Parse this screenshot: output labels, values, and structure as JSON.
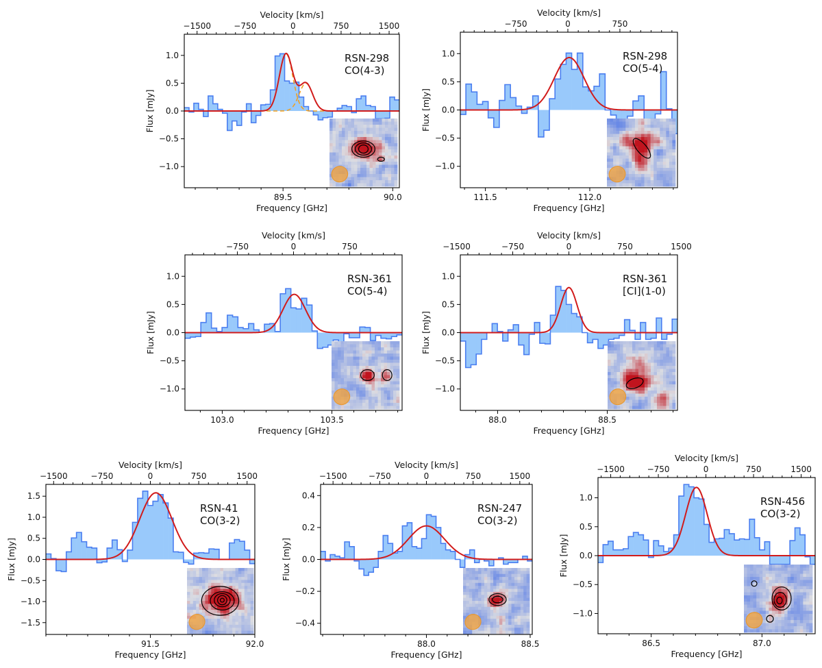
{
  "figure": {
    "description": "Multi-panel CO/[CI] line spectra with Gaussian fits and moment-0 map insets"
  },
  "chart_data": [
    {
      "type": "bar",
      "style": "step-histogram",
      "source": "RSN-298",
      "line": "CO(4-3)",
      "annotation": [
        "RSN-298",
        "CO(4-3)"
      ],
      "xlabel": "Frequency [GHz]",
      "ylabel": "Flux [mJy]",
      "top_xlabel": "Velocity [km/s]",
      "xlim": [
        89.05,
        90.03
      ],
      "ylim": [
        -1.38,
        1.38
      ],
      "xticks": [
        89.5,
        90.0
      ],
      "xtick_labels": [
        "89.5",
        "90.0"
      ],
      "yticks": [
        -1.0,
        -0.5,
        0.0,
        0.5,
        1.0
      ],
      "ytick_labels": [
        "−1.0",
        "−0.5",
        "0.0",
        "0.5",
        "1.0"
      ],
      "vticks": [
        -1500,
        -750,
        0,
        750,
        1500
      ],
      "vtick_labels": [
        "−1500",
        "−750",
        "0",
        "750",
        "1500"
      ],
      "vlim": [
        -1700,
        1660
      ],
      "channel_values": [
        0.06,
        -0.02,
        0.14,
        0.03,
        -0.1,
        0.27,
        0.13,
        0.03,
        -0.04,
        -0.35,
        -0.18,
        -0.26,
        -0.02,
        0.13,
        -0.21,
        -0.08,
        0.11,
        0.12,
        0.38,
        0.99,
        1.03,
        0.54,
        0.5,
        0.52,
        0.25,
        0.08,
        0.0,
        -0.07,
        -0.16,
        -0.12,
        -0.11,
        0.0,
        0.05,
        0.1,
        0.08,
        -0.03,
        0.22,
        0.27,
        0.1,
        0.08,
        -0.14,
        -0.14,
        -0.13,
        0.25,
        0.2
      ],
      "fit": {
        "type": "double-gaussian",
        "components": [
          {
            "amp": 1.03,
            "center_kms": -110,
            "sigma_kms": 105
          },
          {
            "amp": 0.5,
            "center_kms": 200,
            "sigma_kms": 105
          }
        ]
      },
      "legend": "none"
    },
    {
      "type": "bar",
      "style": "step-histogram",
      "source": "RSN-298",
      "line": "CO(5-4)",
      "annotation": [
        "RSN-298",
        "CO(5-4)"
      ],
      "xlabel": "Frequency [GHz]",
      "ylabel": "Flux [mJy]",
      "top_xlabel": "Velocity [km/s]",
      "xlim": [
        111.38,
        112.42
      ],
      "ylim": [
        -1.38,
        1.38
      ],
      "xticks": [
        111.5,
        112.0
      ],
      "xtick_labels": [
        "111.5",
        "112.0"
      ],
      "yticks": [
        -1.0,
        -0.5,
        0.0,
        0.5,
        1.0
      ],
      "ytick_labels": [
        "−1.0",
        "−0.5",
        "0.0",
        "0.5",
        "1.0"
      ],
      "vticks": [
        -750,
        0,
        750
      ],
      "vtick_labels": [
        "−750",
        "0",
        "750"
      ],
      "vlim": [
        -1550,
        1580
      ],
      "channel_values": [
        -0.08,
        0.46,
        0.32,
        0.1,
        0.15,
        -0.14,
        -0.31,
        0.17,
        0.45,
        0.22,
        0.07,
        -0.06,
        0.05,
        0.25,
        -0.48,
        -0.36,
        0.2,
        0.55,
        0.81,
        1.01,
        0.72,
        1.01,
        0.41,
        0.34,
        0.42,
        0.64,
        0.0,
        -0.09,
        -0.2,
        -0.2,
        -0.11,
        0.16,
        0.25,
        -0.22,
        -0.16,
        -0.07,
        0.68,
        0.02,
        -0.42
      ],
      "fit": {
        "type": "gaussian",
        "amp": 0.93,
        "center_kms": 20,
        "sigma_kms": 215
      },
      "legend": "none"
    },
    {
      "type": "bar",
      "style": "step-histogram",
      "source": "RSN-361",
      "line": "CO(5-4)",
      "annotation": [
        "RSN-361",
        "CO(5-4)"
      ],
      "xlabel": "Frequency [GHz]",
      "ylabel": "Flux [mJy]",
      "top_xlabel": "Velocity [km/s]",
      "xlim": [
        102.83,
        103.82
      ],
      "ylim": [
        -1.38,
        1.38
      ],
      "xticks": [
        103.0,
        103.5
      ],
      "xtick_labels": [
        "103.0",
        "103.5"
      ],
      "yticks": [
        -1.0,
        -0.5,
        0.0,
        0.5,
        1.0
      ],
      "ytick_labels": [
        "−1.0",
        "−0.5",
        "0.0",
        "0.5",
        "1.0"
      ],
      "vticks": [
        -750,
        0,
        750
      ],
      "vtick_labels": [
        "−750",
        "0",
        "750"
      ],
      "vlim": [
        -1450,
        1450
      ],
      "channel_values": [
        -0.1,
        -0.08,
        -0.07,
        0.18,
        0.35,
        0.08,
        0.02,
        0.09,
        0.31,
        0.28,
        0.09,
        0.07,
        0.16,
        0.05,
        0.01,
        0.15,
        0.16,
        0.02,
        0.69,
        0.78,
        0.44,
        0.42,
        0.61,
        0.49,
        0.03,
        -0.28,
        -0.26,
        -0.22,
        -0.13,
        -0.2,
        -0.02,
        -0.09,
        -0.09,
        0.1,
        0.09,
        -0.14,
        -0.05,
        -0.1,
        -0.11,
        -0.07,
        -0.04
      ],
      "fit": {
        "type": "gaussian",
        "amp": 0.68,
        "center_kms": 10,
        "sigma_kms": 150
      },
      "legend": "none"
    },
    {
      "type": "bar",
      "style": "step-histogram",
      "source": "RSN-361",
      "line": "[CI](1-0)",
      "annotation": [
        "RSN-361",
        "[CI](1-0)"
      ],
      "xlabel": "Frequency [GHz]",
      "ylabel": "Flux [mJy]",
      "top_xlabel": "Velocity [km/s]",
      "xlim": [
        87.83,
        88.82
      ],
      "ylim": [
        -1.38,
        1.38
      ],
      "xticks": [
        88.0,
        88.5
      ],
      "xtick_labels": [
        "88.0",
        "88.5"
      ],
      "yticks": [
        -1.0,
        -0.5,
        0.0,
        0.5,
        1.0
      ],
      "ytick_labels": [
        "−1.0",
        "−0.5",
        "0.0",
        "0.5",
        "1.0"
      ],
      "vticks": [
        -1500,
        -750,
        0,
        750,
        1500
      ],
      "vtick_labels": [
        "−1500",
        "−750",
        "0",
        "750",
        "1500"
      ],
      "vlim": [
        -1450,
        1450
      ],
      "channel_values": [
        -0.15,
        -0.62,
        -0.57,
        -0.38,
        -0.12,
        0.0,
        0.16,
        0.02,
        -0.15,
        0.05,
        0.14,
        -0.22,
        -0.39,
        -0.03,
        0.18,
        -0.19,
        -0.2,
        0.31,
        0.82,
        0.75,
        0.5,
        0.34,
        0.28,
        0.0,
        -0.18,
        -0.12,
        -0.28,
        -0.22,
        -0.12,
        -0.1,
        -0.05,
        0.23,
        0.04,
        -0.12,
        0.18,
        -0.12,
        -0.1,
        0.26,
        -0.12,
        -0.03,
        0.24
      ],
      "fit": {
        "type": "gaussian",
        "amp": 0.8,
        "center_kms": 0,
        "sigma_kms": 110
      },
      "legend": "none"
    },
    {
      "type": "bar",
      "style": "step-histogram",
      "source": "RSN-41",
      "line": "CO(3-2)",
      "annotation": [
        "RSN-41",
        "CO(3-2)"
      ],
      "xlabel": "Frequency [GHz]",
      "ylabel": "Flux [mJy]",
      "top_xlabel": "Velocity [km/s]",
      "xlim": [
        91.0,
        92.0
      ],
      "ylim": [
        -1.78,
        1.78
      ],
      "xticks": [
        91.5,
        92.0
      ],
      "xtick_labels": [
        "91.5",
        "92.0"
      ],
      "yticks": [
        -1.5,
        -1.0,
        -0.5,
        0.0,
        0.5,
        1.0,
        1.5
      ],
      "ytick_labels": [
        "−1.5",
        "−1.0",
        "−0.5",
        "0.0",
        "0.5",
        "1.0",
        "1.5"
      ],
      "vticks": [
        -1500,
        -750,
        0,
        750,
        1500
      ],
      "vtick_labels": [
        "−1500",
        "−750",
        "0",
        "750",
        "1500"
      ],
      "vlim": [
        -1620,
        1620
      ],
      "channel_values": [
        0.13,
        0.02,
        -0.27,
        -0.29,
        0.18,
        0.51,
        0.64,
        0.42,
        0.29,
        0.27,
        -0.08,
        -0.06,
        0.27,
        0.46,
        0.23,
        -0.05,
        0.22,
        0.88,
        1.45,
        1.62,
        1.28,
        1.38,
        1.54,
        1.34,
        0.98,
        0.18,
        0.17,
        -0.07,
        -0.11,
        0.15,
        0.16,
        0.15,
        0.25,
        0.24,
        0.0,
        0.0,
        0.39,
        0.47,
        0.43,
        0.22,
        -0.1
      ],
      "fit": {
        "type": "gaussian",
        "amp": 1.58,
        "center_kms": 85,
        "sigma_kms": 250
      },
      "legend": "none"
    },
    {
      "type": "bar",
      "style": "step-histogram",
      "source": "RSN-247",
      "line": "CO(3-2)",
      "annotation": [
        "RSN-247",
        "CO(3-2)"
      ],
      "xlabel": "Frequency [GHz]",
      "ylabel": "Flux [mJy]",
      "top_xlabel": "Velocity [km/s]",
      "xlim": [
        87.49,
        88.51
      ],
      "ylim": [
        -0.47,
        0.47
      ],
      "xticks": [
        88.0,
        88.5
      ],
      "xtick_labels": [
        "88.0",
        "88.5"
      ],
      "yticks": [
        -0.4,
        -0.2,
        0.0,
        0.2,
        0.4
      ],
      "ytick_labels": [
        "−0.4",
        "−0.2",
        "0.0",
        "0.2",
        "0.4"
      ],
      "vticks": [
        -1500,
        -750,
        0,
        750,
        1500
      ],
      "vtick_labels": [
        "−1500",
        "−750",
        "0",
        "750",
        "1500"
      ],
      "vlim": [
        -1700,
        1700
      ],
      "channel_values": [
        0.05,
        -0.01,
        0.03,
        0.02,
        0.01,
        0.11,
        0.08,
        -0.01,
        -0.06,
        -0.1,
        -0.08,
        -0.05,
        0.05,
        0.15,
        0.1,
        0.04,
        0.05,
        0.21,
        0.23,
        0.08,
        0.07,
        0.13,
        0.28,
        0.27,
        0.2,
        0.1,
        0.06,
        0.05,
        0.0,
        -0.05,
        0.03,
        0.06,
        -0.02,
        0.0,
        -0.01,
        -0.04,
        0.0,
        0.01,
        -0.03,
        -0.02,
        -0.02,
        0.0,
        0.02,
        -0.01
      ],
      "fit": {
        "type": "gaussian",
        "amp": 0.21,
        "center_kms": 0,
        "sigma_kms": 290
      },
      "legend": "none"
    },
    {
      "type": "bar",
      "style": "step-histogram",
      "source": "RSN-456",
      "line": "CO(3-2)",
      "annotation": [
        "RSN-456",
        "CO(3-2)"
      ],
      "xlabel": "Frequency [GHz]",
      "ylabel": "Flux [mJy]",
      "top_xlabel": "Velocity [km/s]",
      "xlim": [
        86.26,
        87.24
      ],
      "ylim": [
        -1.35,
        1.35
      ],
      "xticks": [
        86.5,
        87.0
      ],
      "xtick_labels": [
        "86.5",
        "87.0"
      ],
      "yticks": [
        -1.0,
        -0.5,
        0.0,
        0.5,
        1.0
      ],
      "ytick_labels": [
        "−1.0",
        "−0.5",
        "0.0",
        "0.5",
        "1.0"
      ],
      "vticks": [
        -1500,
        -750,
        0,
        750,
        1500
      ],
      "vtick_labels": [
        "−1500",
        "−750",
        "0",
        "750",
        "1500"
      ],
      "vlim": [
        -1700,
        1720
      ],
      "channel_values": [
        -0.12,
        0.19,
        0.25,
        0.1,
        0.1,
        0.12,
        0.33,
        0.4,
        0.36,
        0.27,
        -0.03,
        0.26,
        0.17,
        0.07,
        0.13,
        0.36,
        1.03,
        1.23,
        1.19,
        1.0,
        0.98,
        0.54,
        0.23,
        0.29,
        0.3,
        0.45,
        0.38,
        0.27,
        0.29,
        0.28,
        0.63,
        0.31,
        0.1,
        0.24,
        -0.15,
        -0.15,
        -0.15,
        -0.15,
        0.26,
        0.48,
        0.36,
        -0.02,
        -0.15
      ],
      "fit": {
        "type": "gaussian",
        "amp": 1.18,
        "center_kms": -150,
        "sigma_kms": 170
      },
      "legend": "none"
    }
  ],
  "colors": {
    "histogram_fill": "#99c9fb",
    "histogram_edge": "#4a7ef0",
    "fit_line": "#d11b1b",
    "component_line": "#f0a020",
    "beam": "#f0a340",
    "inset_low": "#6c8ce8",
    "inset_high": "#c0141e"
  }
}
